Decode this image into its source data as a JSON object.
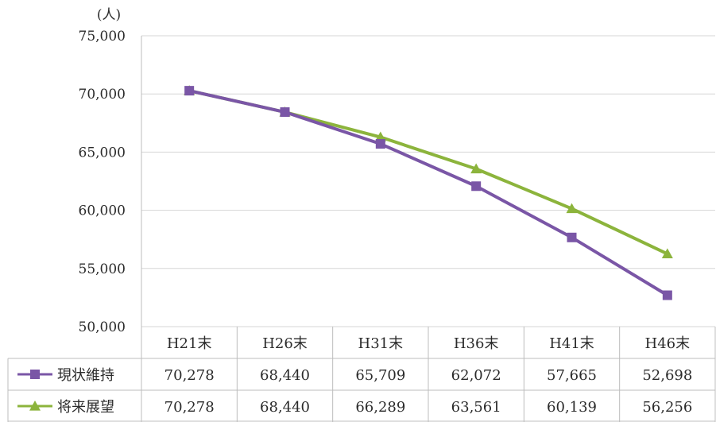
{
  "chart_data": {
    "type": "line",
    "ylabel": "(人)",
    "ylim": [
      50000,
      75000
    ],
    "yticks": [
      50000,
      55000,
      60000,
      65000,
      70000,
      75000
    ],
    "ytick_labels": [
      "50,000",
      "55,000",
      "60,000",
      "65,000",
      "70,000",
      "75,000"
    ],
    "grid": true,
    "legend_position": "data-table-left",
    "categories": [
      "H21末",
      "H26末",
      "H31末",
      "H36末",
      "H41末",
      "H46末"
    ],
    "series": [
      {
        "name": "現状維持",
        "color": "#7a56a6",
        "marker": "square",
        "values": [
          70278,
          68440,
          65709,
          62072,
          57665,
          52698
        ],
        "value_labels": [
          "70,278",
          "68,440",
          "65,709",
          "62,072",
          "57,665",
          "52,698"
        ]
      },
      {
        "name": "将来展望",
        "color": "#8cb43c",
        "marker": "triangle",
        "values": [
          70278,
          68440,
          66289,
          63561,
          60139,
          56256
        ],
        "value_labels": [
          "70,278",
          "68,440",
          "66,289",
          "63,561",
          "60,139",
          "56,256"
        ]
      }
    ]
  }
}
